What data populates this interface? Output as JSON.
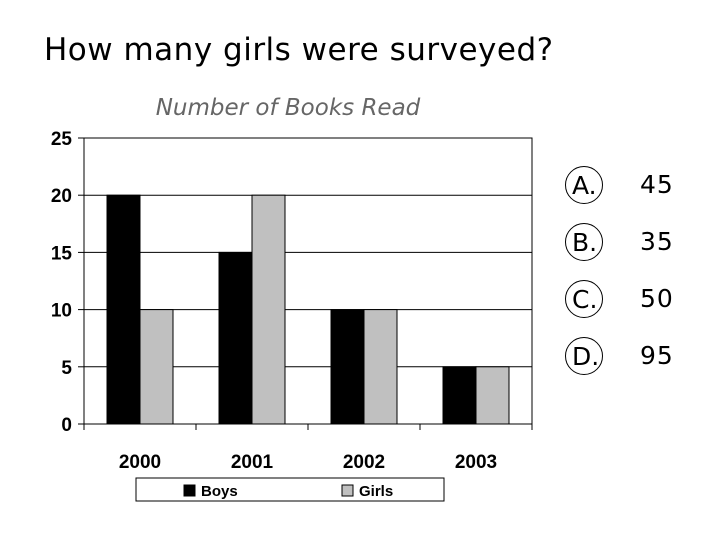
{
  "question": "How many girls were surveyed?",
  "chart_data": {
    "type": "bar",
    "title": "Number of Books Read",
    "xlabel": "",
    "ylabel": "",
    "categories": [
      "2000",
      "2001",
      "2002",
      "2003"
    ],
    "series": [
      {
        "name": "Boys",
        "values": [
          20,
          15,
          10,
          5
        ],
        "color": "#000000"
      },
      {
        "name": "Girls",
        "values": [
          10,
          20,
          10,
          5
        ],
        "color": "#c0c0c0"
      }
    ],
    "ylim": [
      0,
      25
    ],
    "yticks": [
      "0",
      "5",
      "10",
      "15",
      "20",
      "25"
    ],
    "grid": true,
    "legend": "bottom"
  },
  "answers": [
    {
      "letter": "A.",
      "value": "45"
    },
    {
      "letter": "B.",
      "value": "35"
    },
    {
      "letter": "C.",
      "value": "50"
    },
    {
      "letter": "D.",
      "value": "95"
    }
  ]
}
